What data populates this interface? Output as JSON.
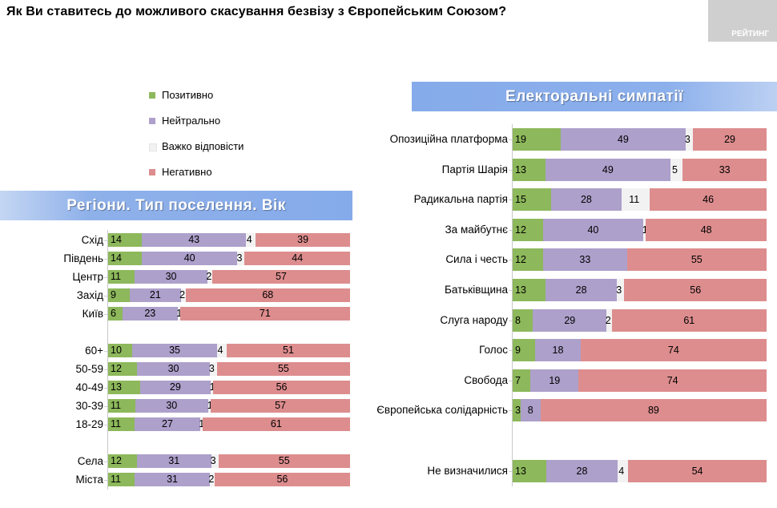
{
  "title": "Як Ви ставитесь до можливого скасування безвізу з Європейським Союзом?",
  "logo_text": "РЕЙТИНГ",
  "colors": {
    "positive": "#8db85b",
    "neutral": "#ada0cb",
    "hard": "#f2f2f2",
    "negative": "#dd8d8e"
  },
  "legend": [
    {
      "label": "Позитивно",
      "color": "#8db85b"
    },
    {
      "label": "Нейтрально",
      "color": "#ada0cb"
    },
    {
      "label": "Важко відповісти",
      "color": "#f2f2f2"
    },
    {
      "label": "Негативно",
      "color": "#dd8d8e"
    }
  ],
  "chart_data": [
    {
      "type": "bar",
      "orientation": "horizontal",
      "stacked": "100%",
      "title": "Регіони. Тип поселення. Вік",
      "series_names": [
        "Позитивно",
        "Нейтрально",
        "Важко відповісти",
        "Негативно"
      ],
      "rows": [
        {
          "label": "Схід",
          "values": [
            14,
            43,
            4,
            39
          ]
        },
        {
          "label": "Південь",
          "values": [
            14,
            40,
            3,
            44
          ]
        },
        {
          "label": "Центр",
          "values": [
            11,
            30,
            2,
            57
          ]
        },
        {
          "label": "Захід",
          "values": [
            9,
            21,
            2,
            68
          ]
        },
        {
          "label": "Київ",
          "values": [
            6,
            23,
            1,
            71
          ]
        },
        {
          "label": "",
          "gap": true
        },
        {
          "label": "60+",
          "values": [
            10,
            35,
            4,
            51
          ]
        },
        {
          "label": "50-59",
          "values": [
            12,
            30,
            3,
            55
          ]
        },
        {
          "label": "40-49",
          "values": [
            13,
            29,
            1,
            56
          ]
        },
        {
          "label": "30-39",
          "values": [
            11,
            30,
            1,
            57
          ]
        },
        {
          "label": "18-29",
          "values": [
            11,
            27,
            1,
            61
          ]
        },
        {
          "label": "",
          "gap": true
        },
        {
          "label": "Села",
          "values": [
            12,
            31,
            3,
            55
          ]
        },
        {
          "label": "Міста",
          "values": [
            11,
            31,
            2,
            56
          ]
        }
      ]
    },
    {
      "type": "bar",
      "orientation": "horizontal",
      "stacked": "100%",
      "title": "Електоральні симпатії",
      "series_names": [
        "Позитивно",
        "Нейтрально",
        "Важко відповісти",
        "Негативно"
      ],
      "rows": [
        {
          "label": "Опозиційна платформа",
          "values": [
            19,
            49,
            3,
            29
          ]
        },
        {
          "label": "Партія Шарія",
          "values": [
            13,
            49,
            5,
            33
          ]
        },
        {
          "label": "Радикальна партія",
          "values": [
            15,
            28,
            11,
            46
          ]
        },
        {
          "label": "За майбутнє",
          "values": [
            12,
            40,
            1,
            48
          ]
        },
        {
          "label": "Сила і честь",
          "values": [
            12,
            33,
            0,
            55
          ]
        },
        {
          "label": "Батьківщина",
          "values": [
            13,
            28,
            3,
            56
          ]
        },
        {
          "label": "Слуга народу",
          "values": [
            8,
            29,
            2,
            61
          ]
        },
        {
          "label": "Голос",
          "values": [
            9,
            18,
            0,
            74
          ]
        },
        {
          "label": "Свобода",
          "values": [
            7,
            19,
            0,
            74
          ]
        },
        {
          "label": "Європейська солідарність",
          "values": [
            3,
            8,
            0,
            89
          ]
        },
        {
          "label": "",
          "gap": true
        },
        {
          "label": "Не визначилися",
          "values": [
            13,
            28,
            4,
            54
          ]
        }
      ]
    }
  ]
}
